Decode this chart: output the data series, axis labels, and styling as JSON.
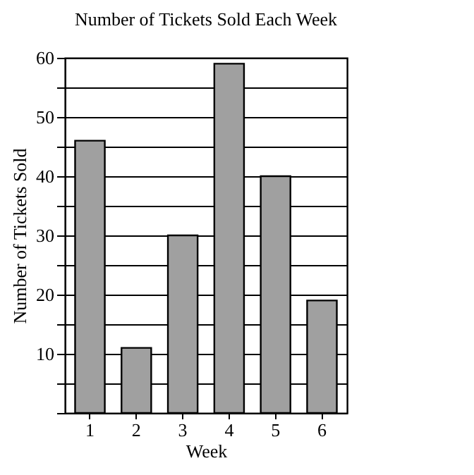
{
  "chart_data": {
    "type": "bar",
    "title": "Number of Tickets Sold Each Week",
    "xlabel": "Week",
    "ylabel": "Number of Tickets Sold",
    "categories": [
      "1",
      "2",
      "3",
      "4",
      "5",
      "6"
    ],
    "values": [
      46,
      11,
      30,
      59,
      40,
      19
    ],
    "color": "#a0a0a0",
    "ylim": [
      0,
      60
    ],
    "yticks": [
      {
        "value": 0,
        "label": null
      },
      {
        "value": 5,
        "label": null
      },
      10,
      {
        "value": 15,
        "label": null
      },
      20,
      {
        "value": 25,
        "label": null
      },
      30,
      {
        "value": 35,
        "label": null
      },
      40,
      {
        "value": 45,
        "label": null
      },
      50,
      {
        "value": 55,
        "label": null
      },
      60
    ],
    "grid": "y"
  }
}
